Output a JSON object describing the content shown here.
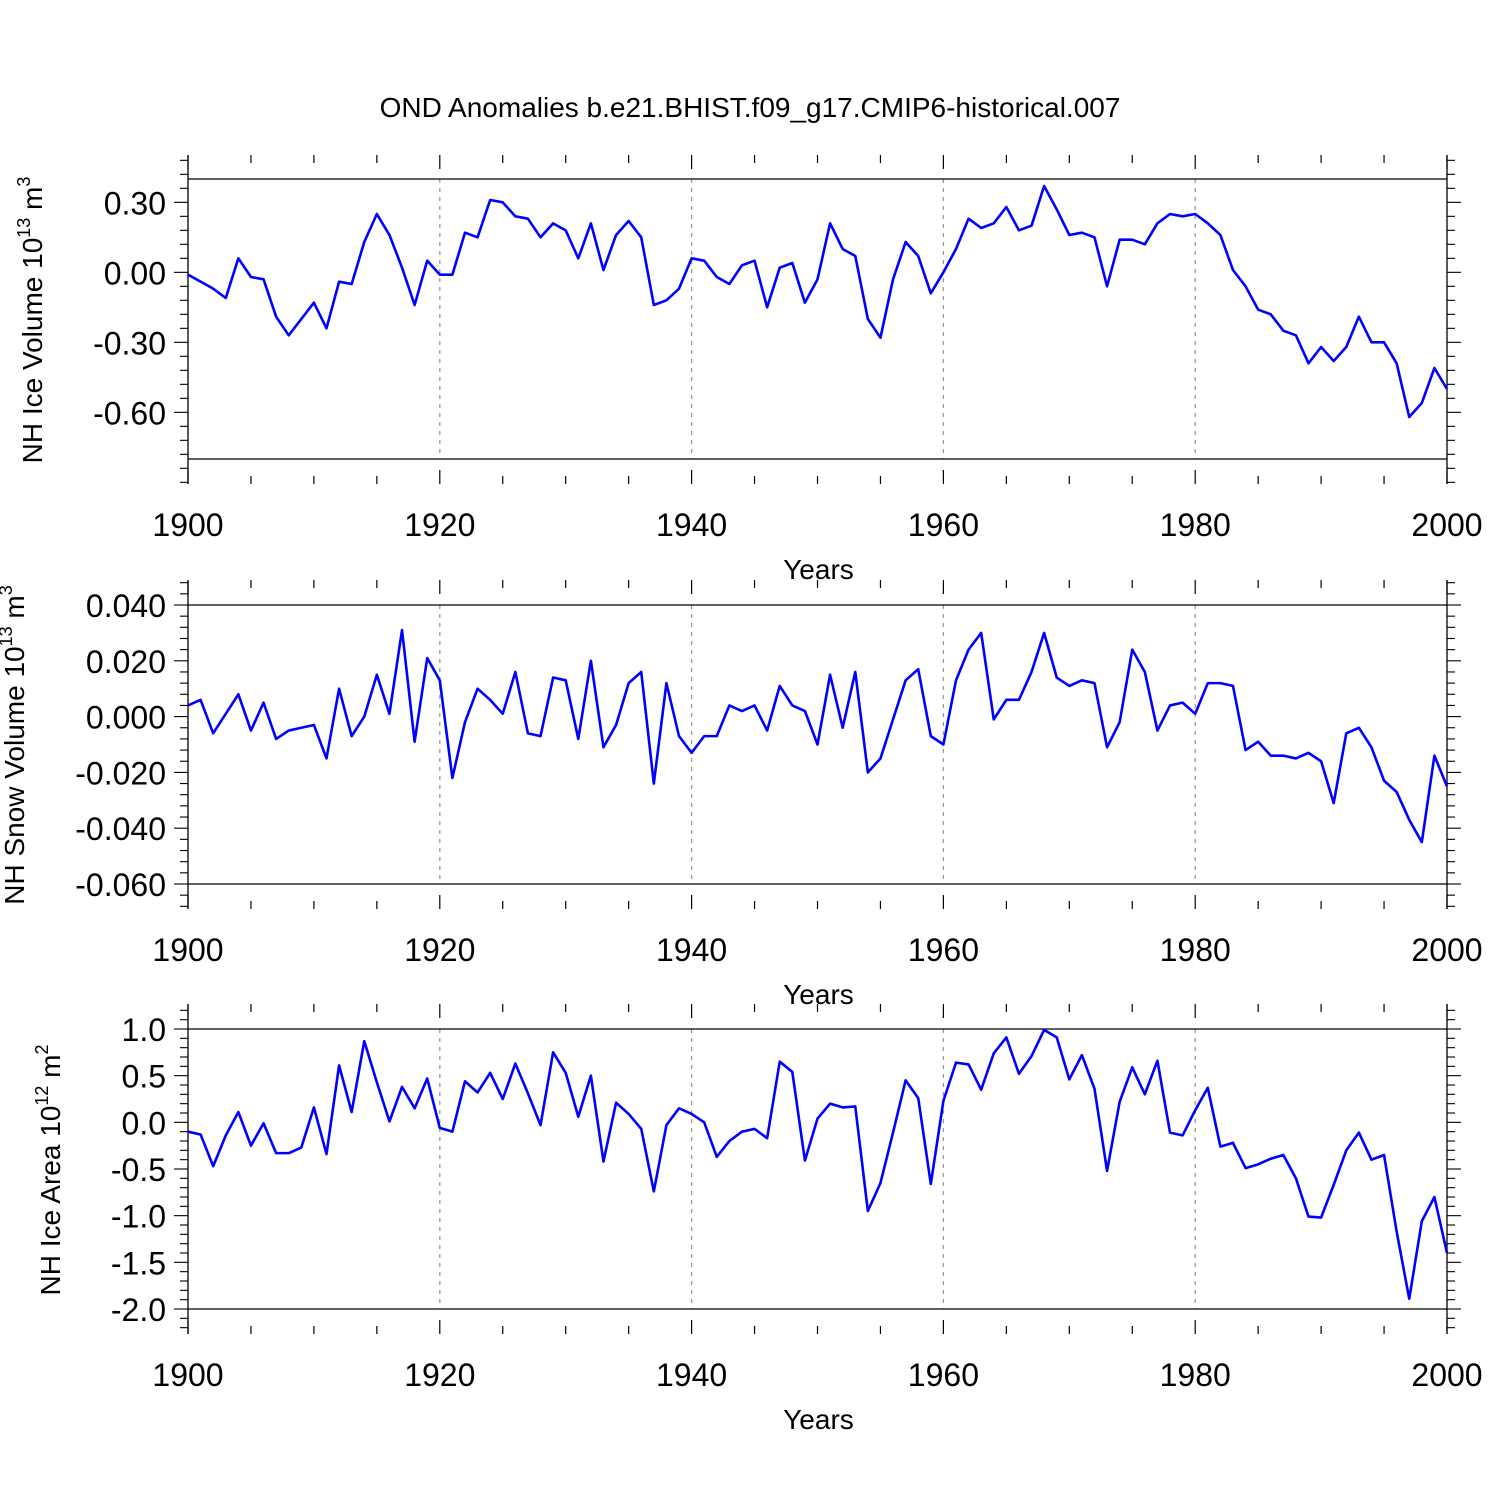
{
  "title": "OND Anomalies b.e21.BHIST.f09_g17.CMIP6-historical.007",
  "line_color": "#0000ff",
  "chart_data": [
    {
      "type": "line",
      "ylabel_main": "NH Ice Volume 10",
      "ylabel_exp": "13",
      "ylabel_unit": " m",
      "ylabel_unit_exp": "3",
      "xlabel": "Years",
      "xlim": [
        1900,
        2000
      ],
      "ylim": [
        -0.8,
        0.4
      ],
      "x_ticks": [
        1900,
        1920,
        1940,
        1960,
        1980,
        2000
      ],
      "y_ticks": [
        0.3,
        0.0,
        -0.3,
        -0.6
      ],
      "y_tick_labels": [
        "0.30",
        "0.00",
        "-0.30",
        "-0.60"
      ],
      "x_tick_labels": [
        "1900",
        "1920",
        "1940",
        "1960",
        "1980",
        "2000"
      ],
      "x_start": 1900,
      "series": [
        {
          "values": [
            -0.01,
            -0.04,
            -0.07,
            -0.11,
            0.06,
            -0.02,
            -0.03,
            -0.19,
            -0.27,
            -0.2,
            -0.13,
            -0.24,
            -0.04,
            -0.05,
            0.13,
            0.25,
            0.16,
            0.02,
            -0.14,
            0.05,
            -0.01,
            -0.01,
            0.17,
            0.15,
            0.31,
            0.3,
            0.24,
            0.23,
            0.15,
            0.21,
            0.18,
            0.06,
            0.21,
            0.01,
            0.16,
            0.22,
            0.15,
            -0.14,
            -0.12,
            -0.07,
            0.06,
            0.05,
            -0.02,
            -0.05,
            0.03,
            0.05,
            -0.15,
            0.02,
            0.04,
            -0.13,
            -0.03,
            0.21,
            0.1,
            0.07,
            -0.2,
            -0.28,
            -0.03,
            0.13,
            0.07,
            -0.09,
            0.0,
            0.1,
            0.23,
            0.19,
            0.21,
            0.28,
            0.18,
            0.2,
            0.37,
            0.27,
            0.16,
            0.17,
            0.15,
            -0.06,
            0.14,
            0.14,
            0.12,
            0.21,
            0.25,
            0.24,
            0.25,
            0.21,
            0.16,
            0.01,
            -0.06,
            -0.16,
            -0.18,
            -0.25,
            -0.27,
            -0.39,
            -0.32,
            -0.38,
            -0.32,
            -0.19,
            -0.3,
            -0.3,
            -0.39,
            -0.62,
            -0.56,
            -0.41,
            -0.5
          ]
        }
      ]
    },
    {
      "type": "line",
      "ylabel_main": "NH Snow Volume 10",
      "ylabel_exp": "13",
      "ylabel_unit": " m",
      "ylabel_unit_exp": "3",
      "xlabel": "Years",
      "xlim": [
        1900,
        2000
      ],
      "ylim": [
        -0.06,
        0.04
      ],
      "x_ticks": [
        1900,
        1920,
        1940,
        1960,
        1980,
        2000
      ],
      "y_ticks": [
        0.04,
        0.02,
        0.0,
        -0.02,
        -0.04,
        -0.06
      ],
      "y_tick_labels": [
        "0.040",
        "0.020",
        "0.000",
        "-0.020",
        "-0.040",
        "-0.060"
      ],
      "x_tick_labels": [
        "1900",
        "1920",
        "1940",
        "1960",
        "1980",
        "2000"
      ],
      "x_start": 1900,
      "series": [
        {
          "values": [
            0.004,
            0.006,
            -0.006,
            0.001,
            0.008,
            -0.005,
            0.005,
            -0.008,
            -0.005,
            -0.004,
            -0.003,
            -0.015,
            0.01,
            -0.007,
            0.0,
            0.015,
            0.001,
            0.031,
            -0.009,
            0.021,
            0.013,
            -0.022,
            -0.002,
            0.01,
            0.006,
            0.001,
            0.016,
            -0.006,
            -0.007,
            0.014,
            0.013,
            -0.008,
            0.02,
            -0.011,
            -0.003,
            0.012,
            0.016,
            -0.024,
            0.012,
            -0.007,
            -0.013,
            -0.007,
            -0.007,
            0.004,
            0.002,
            0.004,
            -0.005,
            0.011,
            0.004,
            0.002,
            -0.01,
            0.015,
            -0.004,
            0.016,
            -0.02,
            -0.015,
            -0.001,
            0.013,
            0.017,
            -0.007,
            -0.01,
            0.013,
            0.024,
            0.03,
            -0.001,
            0.006,
            0.006,
            0.016,
            0.03,
            0.014,
            0.011,
            0.013,
            0.012,
            -0.011,
            -0.002,
            0.024,
            0.016,
            -0.005,
            0.004,
            0.005,
            0.001,
            0.012,
            0.012,
            0.011,
            -0.012,
            -0.009,
            -0.014,
            -0.014,
            -0.015,
            -0.013,
            -0.016,
            -0.031,
            -0.006,
            -0.004,
            -0.011,
            -0.023,
            -0.027,
            -0.037,
            -0.045,
            -0.014,
            -0.025
          ]
        }
      ]
    },
    {
      "type": "line",
      "ylabel_main": "NH Ice Area 10",
      "ylabel_exp": "12",
      "ylabel_unit": " m",
      "ylabel_unit_exp": "2",
      "xlabel": "Years",
      "xlim": [
        1900,
        2000
      ],
      "ylim": [
        -2.0,
        1.0
      ],
      "x_ticks": [
        1900,
        1920,
        1940,
        1960,
        1980,
        2000
      ],
      "y_ticks": [
        1.0,
        0.5,
        0.0,
        -0.5,
        -1.0,
        -1.5,
        -2.0
      ],
      "y_tick_labels": [
        "1.0",
        "0.5",
        "0.0",
        "-0.5",
        "-1.0",
        "-1.5",
        "-2.0"
      ],
      "x_tick_labels": [
        "1900",
        "1920",
        "1940",
        "1960",
        "1980",
        "2000"
      ],
      "x_start": 1900,
      "series": [
        {
          "values": [
            -0.1,
            -0.13,
            -0.47,
            -0.14,
            0.11,
            -0.25,
            -0.01,
            -0.33,
            -0.33,
            -0.27,
            0.16,
            -0.34,
            0.61,
            0.11,
            0.87,
            0.43,
            0.01,
            0.38,
            0.15,
            0.47,
            -0.06,
            -0.1,
            0.44,
            0.32,
            0.53,
            0.25,
            0.63,
            0.31,
            -0.03,
            0.75,
            0.53,
            0.06,
            0.5,
            -0.42,
            0.21,
            0.09,
            -0.07,
            -0.74,
            -0.03,
            0.15,
            0.09,
            0.0,
            -0.37,
            -0.2,
            -0.1,
            -0.07,
            -0.17,
            0.65,
            0.54,
            -0.41,
            0.04,
            0.2,
            0.16,
            0.17,
            -0.95,
            -0.65,
            -0.11,
            0.45,
            0.26,
            -0.66,
            0.23,
            0.64,
            0.62,
            0.35,
            0.74,
            0.91,
            0.52,
            0.71,
            0.99,
            0.91,
            0.46,
            0.72,
            0.36,
            -0.52,
            0.22,
            0.59,
            0.3,
            0.66,
            -0.11,
            -0.14,
            0.13,
            0.37,
            -0.26,
            -0.22,
            -0.49,
            -0.45,
            -0.39,
            -0.35,
            -0.6,
            -1.01,
            -1.02,
            -0.67,
            -0.3,
            -0.11,
            -0.4,
            -0.35,
            -1.17,
            -1.89,
            -1.06,
            -0.8,
            -1.4
          ]
        }
      ]
    }
  ]
}
